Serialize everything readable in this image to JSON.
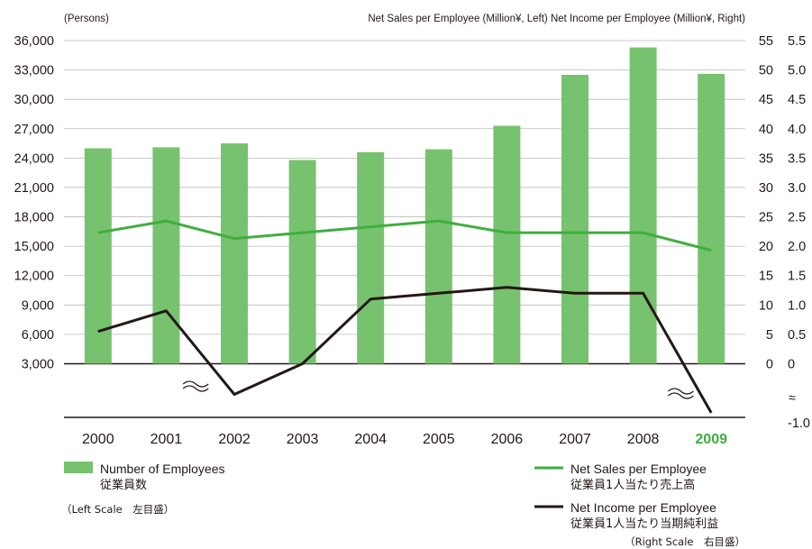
{
  "chart_data": {
    "type": "bar",
    "left_unit_label": "(Persons)",
    "right_unit_label": "Net Sales per Employee (Million¥, Left)  Net Income per Employee (Million¥, Right)",
    "categories": [
      "2000",
      "2001",
      "2002",
      "2003",
      "2004",
      "2005",
      "2006",
      "2007",
      "2008",
      "2009"
    ],
    "highlight_category": "2009",
    "left_axis": {
      "ticks": [
        "36,000",
        "33,000",
        "30,000",
        "27,000",
        "24,000",
        "21,000",
        "18,000",
        "15,000",
        "12,000",
        "9,000",
        "6,000",
        "3,000"
      ],
      "ylim": [
        3000,
        36000
      ]
    },
    "mid_axis": {
      "ticks": [
        "55",
        "50",
        "45",
        "40",
        "35",
        "30",
        "25",
        "20",
        "15",
        "10",
        "5",
        "0"
      ],
      "ylim": [
        0,
        55
      ]
    },
    "right_axis": {
      "ticks": [
        "5.5",
        "5.0",
        "4.5",
        "4.0",
        "3.5",
        "3.0",
        "2.5",
        "2.0",
        "1.5",
        "1.0",
        "0.5",
        "0",
        "-1.0"
      ],
      "ylim": [
        -1.0,
        5.5
      ],
      "break_symbol": "≈"
    },
    "series": [
      {
        "name": "Number of Employees",
        "name_jp": "従業員数",
        "kind": "bar",
        "axis": "left",
        "color": "#77c26e",
        "values": [
          25000,
          25100,
          25500,
          23800,
          24600,
          24900,
          27300,
          32500,
          35300,
          32600
        ]
      },
      {
        "name": "Net Sales per Employee",
        "name_jp": "従業員1人当たり売上高",
        "kind": "line",
        "axis": "mid",
        "color": "#3fae3f",
        "values": [
          22.3,
          24.3,
          21.3,
          22.3,
          23.3,
          24.3,
          22.3,
          22.3,
          22.3,
          19.3
        ]
      },
      {
        "name": "Net Income per Employee",
        "name_jp": "従業員1人当たり当期純利益",
        "kind": "line",
        "axis": "right",
        "color": "#231815",
        "values": [
          0.55,
          0.9,
          -0.5,
          0.0,
          1.1,
          1.2,
          1.3,
          1.2,
          1.2,
          -0.8
        ]
      }
    ],
    "left_scale_note": "（Left Scale　左目盛）",
    "right_scale_note": "（Right Scale　右目盛）"
  }
}
